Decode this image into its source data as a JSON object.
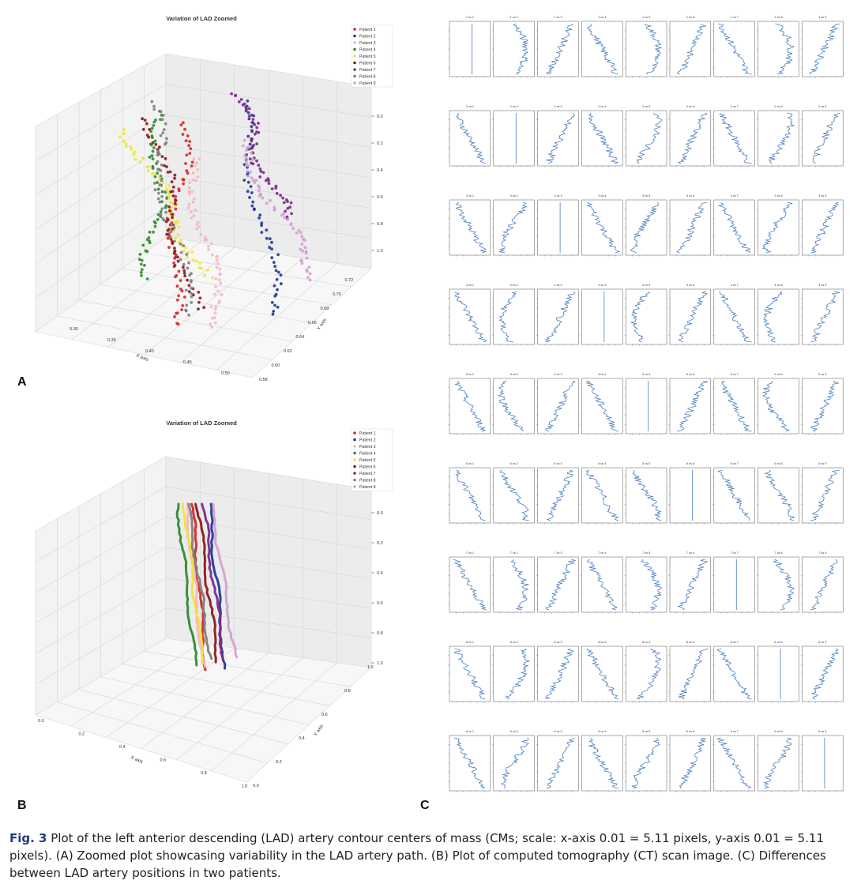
{
  "panels": {
    "A": {
      "letter": "A",
      "title": "Variation of LAD Zoomed",
      "legend": [
        "Patient 1",
        "Patient 2",
        "Patient 3",
        "Patient 4",
        "Patient 5",
        "Patient 6",
        "Patient 7",
        "Patient 8",
        "Patient 9"
      ],
      "legend_colors": [
        "#d62728",
        "#1f3a93",
        "#f4b6c2",
        "#2e8b2e",
        "#f2e33b",
        "#8b1a1a",
        "#7b2a8c",
        "#7f7f7f",
        "#d4a0d0"
      ],
      "xlabel": "X axis",
      "ylabel": "Y axis",
      "x_ticks": [
        "0.30",
        "0.35",
        "0.40",
        "0.45",
        "0.50"
      ],
      "y_ticks": [
        "0.58",
        "0.60",
        "0.62",
        "0.64",
        "0.66",
        "0.68",
        "0.70",
        "0.72"
      ],
      "z_ticks": [
        "0.0",
        "0.2",
        "0.4",
        "0.6",
        "0.8",
        "1.0"
      ]
    },
    "B": {
      "letter": "B",
      "title": "Variation of LAD Zoomed",
      "legend": [
        "Patient 1",
        "Patient 2",
        "Patient 3",
        "Patient 4",
        "Patient 5",
        "Patient 6",
        "Patient 7",
        "Patient 8",
        "Patient 9"
      ],
      "legend_colors": [
        "#d62728",
        "#1f3a93",
        "#f4b6c2",
        "#2e8b2e",
        "#f2e33b",
        "#8b1a1a",
        "#7b2a8c",
        "#7f7f7f",
        "#d4a0d0"
      ],
      "xlabel": "X axis",
      "ylabel": "Y axis",
      "x_ticks": [
        "0.0",
        "0.2",
        "0.4",
        "0.6",
        "0.8",
        "1.0"
      ],
      "y_ticks": [
        "0.0",
        "0.2",
        "0.4",
        "0.6",
        "0.8",
        "1.0"
      ],
      "z_ticks": [
        "0.0",
        "0.2",
        "0.4",
        "0.6",
        "0.8",
        "1.0"
      ]
    },
    "C": {
      "letter": "C",
      "rows": 9,
      "cols": 9,
      "cell_titles": [
        [
          "1 vs 1",
          "1 vs 2",
          "1 vs 3",
          "1 vs 4",
          "1 vs 5",
          "1 vs 6",
          "1 vs 7",
          "1 vs 8",
          "1 vs 9"
        ],
        [
          "2 vs 1",
          "2 vs 2",
          "2 vs 3",
          "2 vs 4",
          "2 vs 5",
          "2 vs 6",
          "2 vs 7",
          "2 vs 8",
          "2 vs 9"
        ],
        [
          "3 vs 1",
          "3 vs 2",
          "3 vs 3",
          "3 vs 4",
          "3 vs 5",
          "3 vs 6",
          "3 vs 7",
          "3 vs 8",
          "3 vs 9"
        ],
        [
          "4 vs 1",
          "4 vs 2",
          "4 vs 3",
          "4 vs 4",
          "4 vs 5",
          "4 vs 6",
          "4 vs 7",
          "4 vs 8",
          "4 vs 9"
        ],
        [
          "5 vs 1",
          "5 vs 2",
          "5 vs 3",
          "5 vs 4",
          "5 vs 5",
          "5 vs 6",
          "5 vs 7",
          "5 vs 8",
          "5 vs 9"
        ],
        [
          "6 vs 1",
          "6 vs 2",
          "6 vs 3",
          "6 vs 4",
          "6 vs 5",
          "6 vs 6",
          "6 vs 7",
          "6 vs 8",
          "6 vs 9"
        ],
        [
          "7 vs 1",
          "7 vs 2",
          "7 vs 3",
          "7 vs 4",
          "7 vs 5",
          "7 vs 6",
          "7 vs 7",
          "7 vs 8",
          "7 vs 9"
        ],
        [
          "8 vs 1",
          "8 vs 2",
          "8 vs 3",
          "8 vs 4",
          "8 vs 5",
          "8 vs 6",
          "8 vs 7",
          "8 vs 8",
          "8 vs 9"
        ],
        [
          "9 vs 1",
          "9 vs 2",
          "9 vs 3",
          "9 vs 4",
          "9 vs 5",
          "9 vs 6",
          "9 vs 7",
          "9 vs 8",
          "9 vs 9"
        ]
      ],
      "line_color": "#4a7fc1"
    }
  },
  "caption": {
    "label": "Fig. 3",
    "text": "Plot of the left anterior descending (LAD) artery contour centers of mass (CMs; scale: x-axis 0.01 = 5.11 pixels, y-axis 0.01 = 5.11 pixels). (A) Zoomed plot showcasing variability in the LAD artery path. (B) Plot of computed tomography (CT) scan image. (C) Differences between LAD artery positions in two patients."
  }
}
